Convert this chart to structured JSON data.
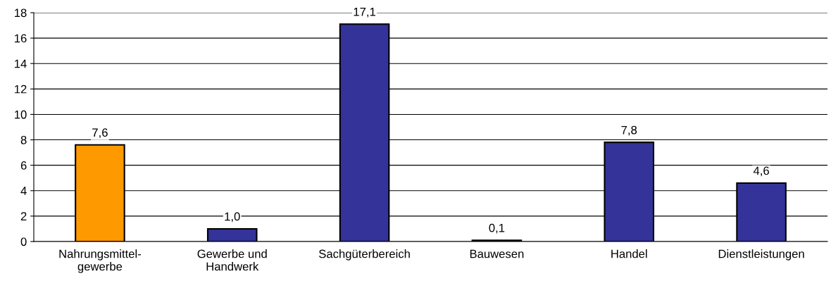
{
  "chart_data": {
    "type": "bar",
    "categories": [
      "Nahrungsmittel-\ngewerbe",
      "Gewerbe und\nHandwerk",
      "Sachgüterbereich",
      "Bauwesen",
      "Handel",
      "Dienstleistungen"
    ],
    "values": [
      7.6,
      1.0,
      17.1,
      0.1,
      7.8,
      4.6
    ],
    "colors": [
      "#ff9900",
      "#333399",
      "#333399",
      "#333399",
      "#333399",
      "#333399"
    ],
    "value_labels": [
      "7,6",
      "1,0",
      "17,1",
      "0,1",
      "7,8",
      "4,6"
    ],
    "ylim": [
      0,
      18
    ],
    "yticks": [
      0,
      2,
      4,
      6,
      8,
      10,
      12,
      14,
      16,
      18
    ],
    "grid": "y"
  }
}
